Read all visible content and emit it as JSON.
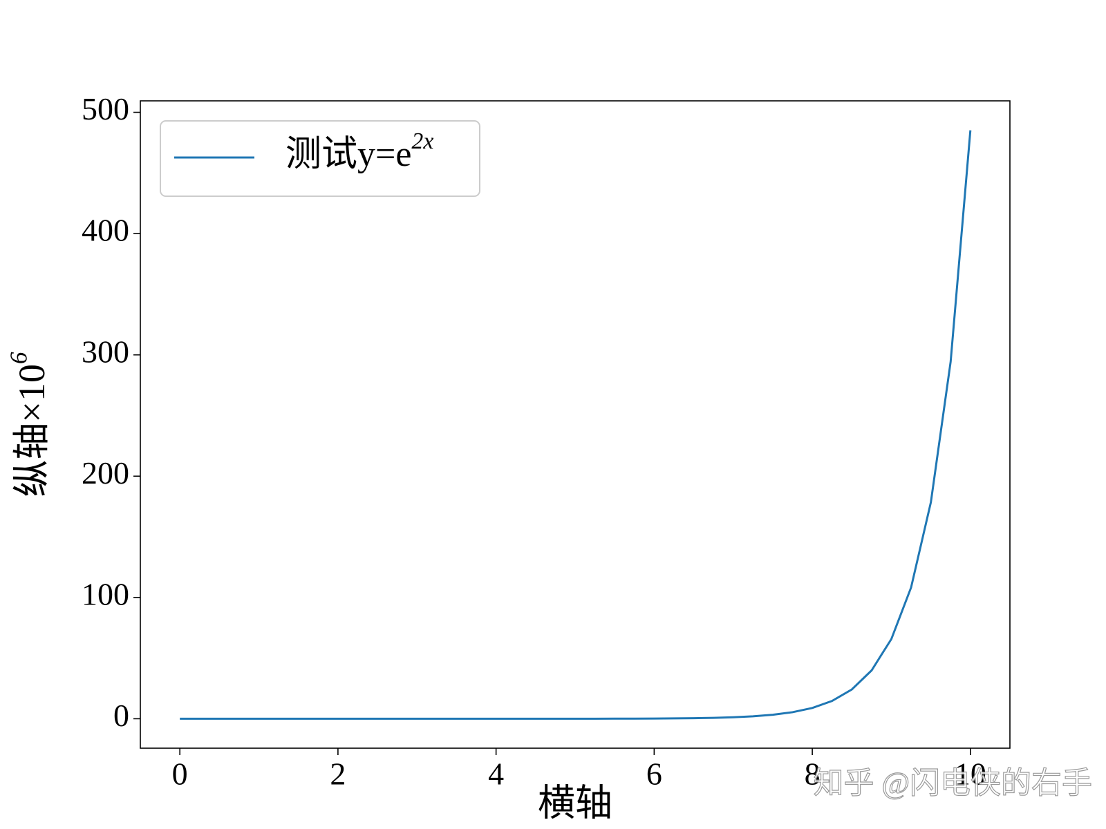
{
  "chart_data": {
    "type": "line",
    "xlabel": "横轴",
    "ylabel": "纵轴×106",
    "x": [
      0,
      0.25,
      0.5,
      0.75,
      1,
      1.25,
      1.5,
      1.75,
      2,
      2.25,
      2.5,
      2.75,
      3,
      3.25,
      3.5,
      3.75,
      4,
      4.25,
      4.5,
      4.75,
      5,
      5.25,
      5.5,
      5.75,
      6,
      6.25,
      6.5,
      6.75,
      7,
      7.25,
      7.5,
      7.75,
      8,
      8.25,
      8.5,
      8.75,
      9,
      9.25,
      9.5,
      9.75,
      10
    ],
    "series": [
      {
        "name": "测试y=e2x",
        "color": "#1f77b4",
        "values": [
          0,
          0,
          0,
          0,
          0,
          0,
          0,
          0,
          0,
          0,
          0,
          0,
          0,
          0,
          0,
          0,
          0,
          0,
          0.01,
          0.01,
          0.02,
          0.04,
          0.06,
          0.1,
          0.16,
          0.27,
          0.44,
          0.73,
          1.2,
          1.98,
          3.27,
          5.39,
          8.89,
          14.65,
          24.15,
          39.82,
          65.66,
          108.25,
          178.48,
          294.27,
          485.17
        ]
      }
    ],
    "xlim": [
      -0.5,
      10.5
    ],
    "ylim": [
      -24.26,
      509.43
    ],
    "xticks": [
      0,
      2,
      4,
      6,
      8,
      10
    ],
    "yticks": [
      0,
      100,
      200,
      300,
      400,
      500
    ],
    "legend": "upper left",
    "grid": false,
    "annotation": "知乎 @闪电侠的右手"
  }
}
